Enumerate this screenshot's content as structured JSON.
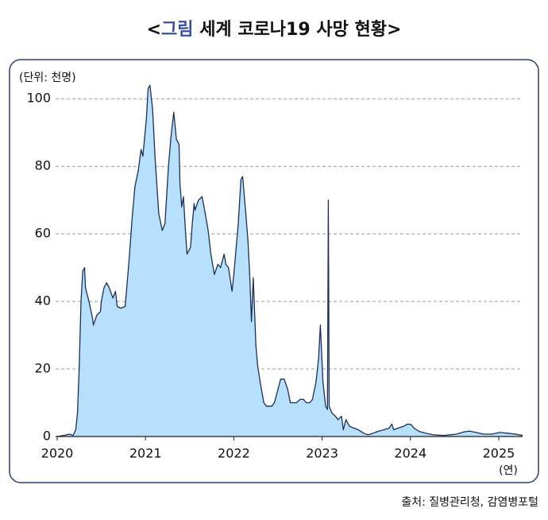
{
  "chart_data": {
    "type": "area",
    "title": [
      "<",
      "그림",
      " 세계 코로나19 사망 현황>"
    ],
    "y_label": "(단위: 천명)",
    "x_label": "(연)",
    "source": "출처: 질병관리청, 감염병포털",
    "color": "#1c2e5a",
    "fill": "#b6e0fb",
    "grid": true,
    "xlim": [
      2020,
      2025.27
    ],
    "ylim": [
      0,
      105
    ],
    "xticks": [
      2020,
      2021,
      2022,
      2023,
      2024,
      2025
    ],
    "yticks": [
      0,
      20,
      40,
      60,
      80,
      100
    ],
    "x": [
      2020.0,
      2020.07,
      2020.14,
      2020.18,
      2020.21,
      2020.23,
      2020.25,
      2020.27,
      2020.29,
      2020.31,
      2020.32,
      2020.36,
      2020.4,
      2020.41,
      2020.45,
      2020.49,
      2020.5,
      2020.53,
      2020.56,
      2020.59,
      2020.63,
      2020.66,
      2020.68,
      2020.72,
      2020.77,
      2020.81,
      2020.85,
      2020.88,
      2020.92,
      2020.95,
      2020.97,
      2021.01,
      2021.03,
      2021.05,
      2021.08,
      2021.11,
      2021.15,
      2021.19,
      2021.22,
      2021.26,
      2021.29,
      2021.32,
      2021.35,
      2021.38,
      2021.39,
      2021.41,
      2021.43,
      2021.45,
      2021.47,
      2021.51,
      2021.53,
      2021.55,
      2021.56,
      2021.6,
      2021.64,
      2021.67,
      2021.71,
      2021.74,
      2021.78,
      2021.82,
      2021.85,
      2021.89,
      2021.91,
      2021.94,
      2021.98,
      2022.0,
      2022.05,
      2022.08,
      2022.1,
      2022.13,
      2022.16,
      2022.18,
      2022.2,
      2022.22,
      2022.25,
      2022.27,
      2022.3,
      2022.34,
      2022.37,
      2022.43,
      2022.46,
      2022.5,
      2022.53,
      2022.57,
      2022.61,
      2022.64,
      2022.68,
      2022.71,
      2022.75,
      2022.79,
      2022.82,
      2022.86,
      2022.89,
      2022.93,
      2022.96,
      2022.98,
      2023.01,
      2023.04,
      2023.06,
      2023.07,
      2023.08,
      2023.11,
      2023.15,
      2023.18,
      2023.22,
      2023.24,
      2023.27,
      2023.31,
      2023.36,
      2023.41,
      2023.47,
      2023.52,
      2023.58,
      2023.63,
      2023.7,
      2023.76,
      2023.79,
      2023.81,
      2023.86,
      2023.92,
      2023.97,
      2024.01,
      2024.04,
      2024.1,
      2024.17,
      2024.26,
      2024.38,
      2024.52,
      2024.61,
      2024.67,
      2024.74,
      2024.83,
      2024.92,
      2025.01,
      2025.1,
      2025.19,
      2025.27
    ],
    "values": [
      0,
      0.3,
      0.7,
      0.3,
      2,
      7,
      21,
      40,
      49,
      50,
      44,
      40,
      35,
      33,
      36,
      37,
      40,
      44,
      45.5,
      44,
      41,
      43,
      38.5,
      38,
      38.5,
      51,
      65,
      74,
      79,
      85,
      83,
      94,
      103,
      104,
      97,
      82,
      66,
      61,
      63,
      80,
      89,
      96,
      88,
      86.5,
      75,
      68,
      71,
      62,
      54,
      56,
      63,
      69,
      67,
      70,
      71,
      67,
      61,
      54,
      48,
      51,
      50,
      54,
      51,
      50,
      43,
      48,
      63,
      76,
      77,
      68,
      58,
      48,
      34,
      47,
      27,
      21,
      16,
      10,
      9,
      9,
      10,
      14,
      17,
      17,
      14,
      10,
      10,
      10,
      11,
      11,
      10,
      10,
      11,
      16,
      23,
      33,
      16,
      9,
      8,
      70,
      9,
      7,
      6,
      5,
      6,
      2,
      5,
      3,
      2.5,
      2,
      1,
      0.5,
      1,
      1.5,
      2,
      2.5,
      3.7,
      2,
      2.5,
      3,
      3.7,
      3.5,
      2.5,
      1.5,
      1,
      0.5,
      0.3,
      0.7,
      1.4,
      1.6,
      1.2,
      0.7,
      0.7,
      1.2,
      1,
      0.7,
      0.3
    ]
  }
}
